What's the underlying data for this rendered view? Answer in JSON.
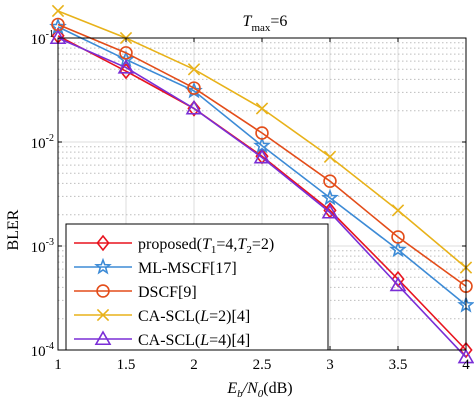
{
  "chart_data": {
    "type": "line",
    "title": {
      "main": "T",
      "sub": "max",
      "rest": "=6"
    },
    "xlabel": {
      "p1": "E",
      "s1": "b",
      "p2": "/N",
      "s2": "0",
      "p3": "(dB)"
    },
    "ylabel": "BLER",
    "x": [
      1,
      1.5,
      2,
      2.5,
      3,
      3.5,
      4
    ],
    "xlim": [
      1,
      4
    ],
    "ylim": [
      0.0001,
      0.1
    ],
    "yscale": "log",
    "xticks": [
      1,
      1.5,
      2,
      2.5,
      3,
      3.5,
      4
    ],
    "xtick_labels": [
      "1",
      "1.5",
      "2",
      "2.5",
      "3",
      "3.5",
      "4"
    ],
    "yticks": [
      0.1,
      0.01,
      0.001,
      0.0001
    ],
    "ytick_labels": [
      {
        "base": "10",
        "exp": "-1"
      },
      {
        "base": "10",
        "exp": "-2"
      },
      {
        "base": "10",
        "exp": "-3"
      },
      {
        "base": "10",
        "exp": "-4"
      }
    ],
    "grid": true,
    "legend_position": "bottom-left",
    "series": [
      {
        "legend": {
          "p1": "proposed(",
          "a": "T",
          "as": "1",
          "m": "=4,",
          "b": "T",
          "bs": "2",
          "e": "=2)"
        },
        "marker": "diamond",
        "color": "#e8141f",
        "values": [
          0.105,
          0.048,
          0.021,
          0.0073,
          0.0022,
          0.00048,
          0.0001
        ]
      },
      {
        "legend": {
          "p1": "ML-MSCF[17]"
        },
        "marker": "star",
        "color": "#3d8bd6",
        "values": [
          0.128,
          0.062,
          0.031,
          0.0092,
          0.0029,
          0.00092,
          0.00027
        ]
      },
      {
        "legend": {
          "p1": "DSCF[9]"
        },
        "marker": "circle",
        "color": "#e34d1a",
        "values": [
          0.135,
          0.072,
          0.033,
          0.0122,
          0.0042,
          0.00122,
          0.00041
        ]
      },
      {
        "legend": {
          "p1": "CA-SCL(",
          "a": "L",
          "m": "=2)[4]"
        },
        "marker": "x",
        "color": "#e8b21a",
        "values": [
          0.182,
          0.1,
          0.05,
          0.021,
          0.0072,
          0.0022,
          0.00062
        ]
      },
      {
        "legend": {
          "p1": "CA-SCL(",
          "a": "L",
          "m": "=4)[4]"
        },
        "marker": "triangle",
        "color": "#7a2ed6",
        "values": [
          0.1,
          0.052,
          0.021,
          0.0071,
          0.0021,
          0.00042,
          8.5e-05
        ]
      }
    ]
  }
}
